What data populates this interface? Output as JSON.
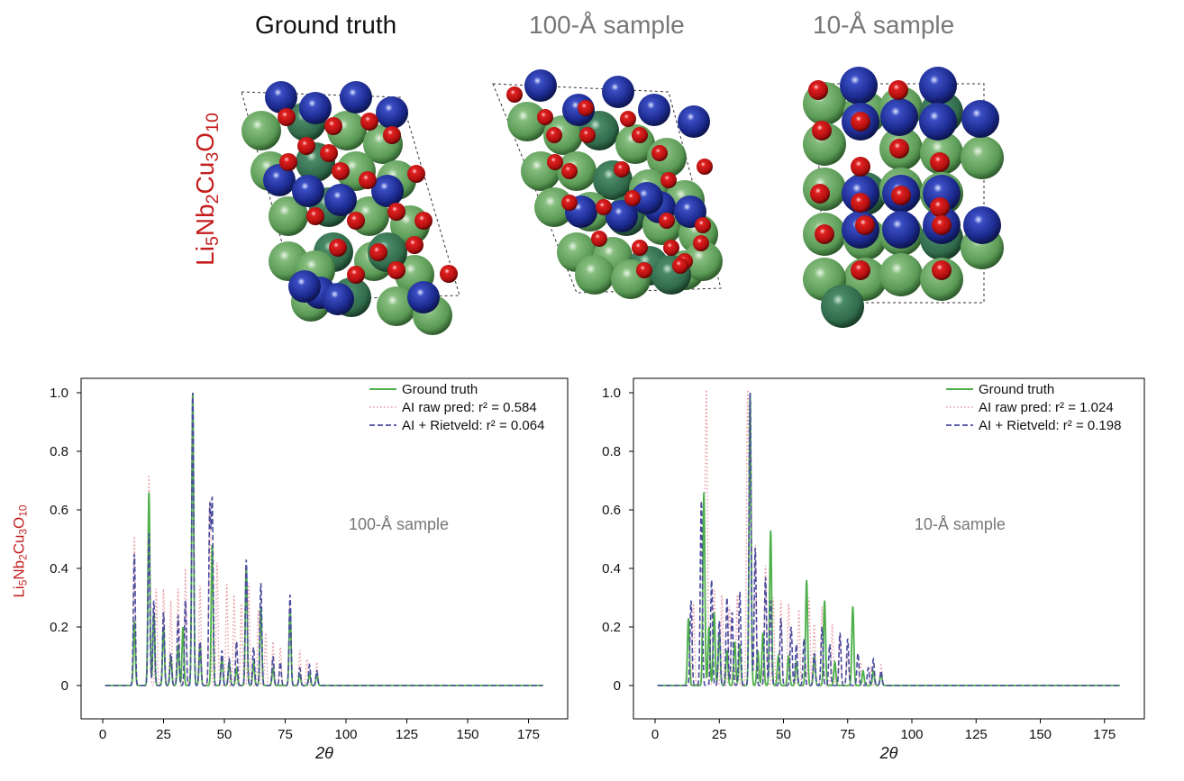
{
  "structure_titles": [
    "Ground truth",
    "100-Å sample",
    "10-Å sample"
  ],
  "formula": {
    "parts": [
      "Li",
      "5",
      "Nb",
      "2",
      "Cu",
      "3",
      "O",
      "10"
    ]
  },
  "colors": {
    "ground_truth": "#4daf4a",
    "raw_pred": "#e89aa3",
    "rietveld": "#4b4b9e",
    "formula": "#c41e1e",
    "atom_blue": "#1f2f99",
    "atom_green": "#5f9e5a",
    "atom_red": "#c01010"
  },
  "atom_icons": [
    "niobium-sphere-blue",
    "copper-sphere-green",
    "oxygen-sphere-red"
  ],
  "chart_data": [
    {
      "type": "line",
      "annotation": "100-Å sample",
      "xlabel": "2θ",
      "ylabel": "",
      "xlim": [
        0,
        180
      ],
      "ylim": [
        0,
        1.0
      ],
      "xticks": [
        "0",
        "25",
        "50",
        "75",
        "100",
        "125",
        "150",
        "175"
      ],
      "yticks": [
        "0",
        "0.2",
        "0.4",
        "0.6",
        "0.8",
        "1.0"
      ],
      "legend_position": "top-right",
      "series": [
        {
          "name": "Ground truth",
          "style": "solid",
          "peaks": [
            [
              13,
              0.22
            ],
            [
              19,
              0.66
            ],
            [
              21,
              0.25
            ],
            [
              25,
              0.2
            ],
            [
              28,
              0.1
            ],
            [
              31,
              0.14
            ],
            [
              33,
              0.2
            ],
            [
              37,
              1.0
            ],
            [
              40,
              0.14
            ],
            [
              45,
              0.48
            ],
            [
              49,
              0.1
            ],
            [
              52,
              0.08
            ],
            [
              55,
              0.06
            ],
            [
              59,
              0.41
            ],
            [
              62,
              0.08
            ],
            [
              65,
              0.27
            ],
            [
              70,
              0.06
            ],
            [
              77,
              0.26
            ],
            [
              81,
              0.04
            ],
            [
              85,
              0.04
            ],
            [
              88,
              0.04
            ]
          ]
        },
        {
          "name": "AI raw pred: r² = 0.584",
          "style": "dotted",
          "peaks": [
            [
              13,
              0.51
            ],
            [
              19,
              0.72
            ],
            [
              22,
              0.33
            ],
            [
              25,
              0.33
            ],
            [
              28,
              0.29
            ],
            [
              31,
              0.33
            ],
            [
              34,
              0.4
            ],
            [
              37,
              1.0
            ],
            [
              40,
              0.34
            ],
            [
              44,
              0.63
            ],
            [
              47,
              0.42
            ],
            [
              51,
              0.35
            ],
            [
              54,
              0.31
            ],
            [
              57,
              0.28
            ],
            [
              60,
              0.35
            ],
            [
              64,
              0.26
            ],
            [
              67,
              0.18
            ],
            [
              70,
              0.15
            ],
            [
              73,
              0.13
            ],
            [
              77,
              0.29
            ],
            [
              81,
              0.12
            ],
            [
              84,
              0.09
            ],
            [
              88,
              0.08
            ]
          ]
        },
        {
          "name": "AI + Rietveld: r² = 0.064",
          "style": "dashed",
          "peaks": [
            [
              13,
              0.45
            ],
            [
              19,
              0.52
            ],
            [
              21,
              0.29
            ],
            [
              25,
              0.25
            ],
            [
              28,
              0.11
            ],
            [
              31,
              0.24
            ],
            [
              34,
              0.29
            ],
            [
              37,
              1.0
            ],
            [
              40,
              0.15
            ],
            [
              44,
              0.6
            ],
            [
              45,
              0.62
            ],
            [
              49,
              0.12
            ],
            [
              52,
              0.09
            ],
            [
              55,
              0.15
            ],
            [
              59,
              0.43
            ],
            [
              62,
              0.13
            ],
            [
              65,
              0.35
            ],
            [
              70,
              0.1
            ],
            [
              73,
              0.08
            ],
            [
              77,
              0.31
            ],
            [
              81,
              0.06
            ],
            [
              85,
              0.07
            ],
            [
              88,
              0.05
            ]
          ]
        }
      ]
    },
    {
      "type": "line",
      "annotation": "10-Å sample",
      "xlabel": "2θ",
      "ylabel": "",
      "xlim": [
        0,
        180
      ],
      "ylim": [
        0,
        1.0
      ],
      "xticks": [
        "0",
        "25",
        "50",
        "75",
        "100",
        "125",
        "150",
        "175"
      ],
      "yticks": [
        "0",
        "0.2",
        "0.4",
        "0.6",
        "0.8",
        "1.0"
      ],
      "legend_position": "top-right",
      "series": [
        {
          "name": "Ground truth",
          "style": "solid",
          "peaks": [
            [
              13,
              0.23
            ],
            [
              19,
              0.66
            ],
            [
              21,
              0.2
            ],
            [
              23,
              0.25
            ],
            [
              25,
              0.18
            ],
            [
              28,
              0.12
            ],
            [
              31,
              0.15
            ],
            [
              33,
              0.14
            ],
            [
              37,
              1.0
            ],
            [
              40,
              0.12
            ],
            [
              42,
              0.18
            ],
            [
              45,
              0.53
            ],
            [
              48,
              0.1
            ],
            [
              52,
              0.1
            ],
            [
              55,
              0.08
            ],
            [
              59,
              0.36
            ],
            [
              62,
              0.1
            ],
            [
              66,
              0.29
            ],
            [
              70,
              0.08
            ],
            [
              77,
              0.27
            ],
            [
              81,
              0.05
            ],
            [
              85,
              0.05
            ],
            [
              88,
              0.04
            ]
          ]
        },
        {
          "name": "AI raw pred: r² = 1.024",
          "style": "dotted",
          "peaks": [
            [
              15,
              0.28
            ],
            [
              19,
              0.61
            ],
            [
              20,
              1.01
            ],
            [
              23,
              0.33
            ],
            [
              26,
              0.31
            ],
            [
              29,
              0.27
            ],
            [
              32,
              0.31
            ],
            [
              36,
              0.99
            ],
            [
              37,
              0.72
            ],
            [
              39,
              0.48
            ],
            [
              43,
              0.41
            ],
            [
              46,
              0.3
            ],
            [
              49,
              0.29
            ],
            [
              52,
              0.28
            ],
            [
              56,
              0.26
            ],
            [
              60,
              0.3
            ],
            [
              62,
              0.21
            ],
            [
              65,
              0.27
            ],
            [
              69,
              0.21
            ],
            [
              72,
              0.17
            ],
            [
              75,
              0.11
            ],
            [
              80,
              0.08
            ],
            [
              84,
              0.06
            ],
            [
              88,
              0.07
            ]
          ]
        },
        {
          "name": "AI + Rietveld: r² = 0.198",
          "style": "dashed",
          "peaks": [
            [
              14,
              0.29
            ],
            [
              18,
              0.63
            ],
            [
              22,
              0.36
            ],
            [
              25,
              0.22
            ],
            [
              28,
              0.3
            ],
            [
              30,
              0.25
            ],
            [
              33,
              0.32
            ],
            [
              37,
              1.0
            ],
            [
              39,
              0.47
            ],
            [
              43,
              0.37
            ],
            [
              45,
              0.29
            ],
            [
              49,
              0.23
            ],
            [
              53,
              0.2
            ],
            [
              55,
              0.14
            ],
            [
              58,
              0.16
            ],
            [
              62,
              0.11
            ],
            [
              65,
              0.2
            ],
            [
              68,
              0.14
            ],
            [
              72,
              0.18
            ],
            [
              75,
              0.16
            ],
            [
              79,
              0.11
            ],
            [
              83,
              0.06
            ],
            [
              85,
              0.09
            ],
            [
              88,
              0.05
            ]
          ]
        }
      ]
    }
  ]
}
